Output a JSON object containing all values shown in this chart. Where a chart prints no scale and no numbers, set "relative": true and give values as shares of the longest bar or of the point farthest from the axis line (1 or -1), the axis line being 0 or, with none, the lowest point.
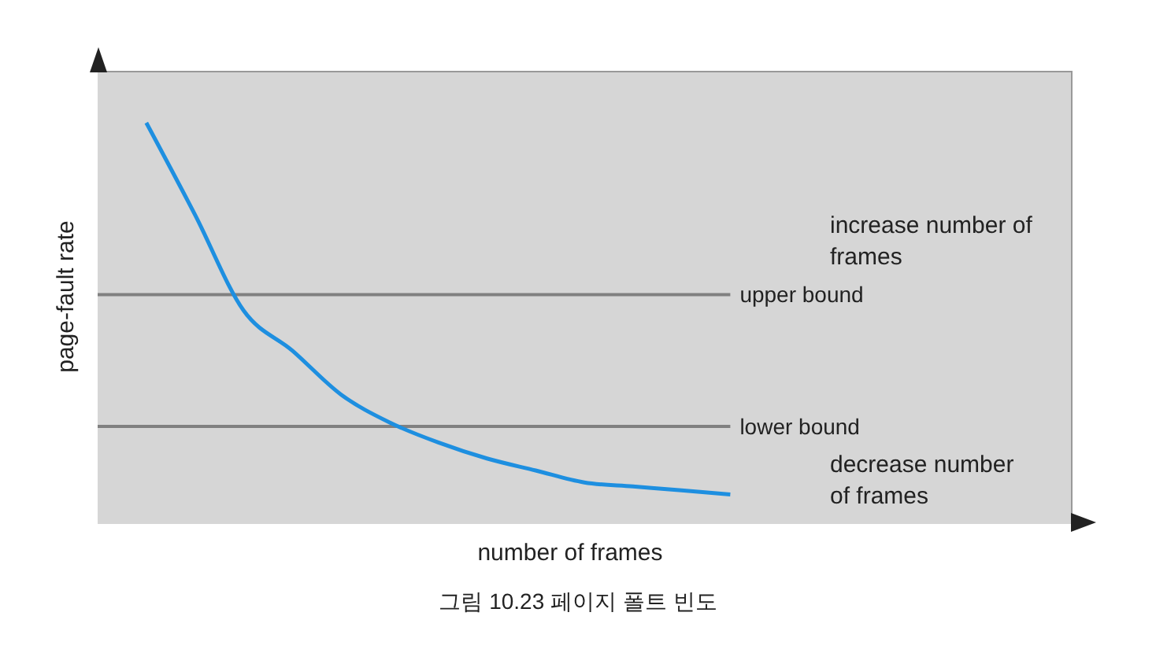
{
  "chart_data": {
    "type": "line",
    "relative": true,
    "xlabel": "number of frames",
    "ylabel": "page-fault rate",
    "categories": [
      null,
      null,
      null,
      null,
      null,
      null,
      null,
      null,
      null,
      null,
      null,
      null,
      null,
      null,
      null,
      null,
      null,
      null,
      null,
      null,
      null
    ],
    "series": [
      {
        "color": "#1e8fe0",
        "values": [
          null,
          1,
          0.77,
          0.53,
          0.43,
          0.32,
          0.25,
          0.2,
          0.16,
          0.13,
          0.1,
          0.09,
          0.08,
          0.07,
          null,
          null,
          null,
          null,
          null,
          null,
          null
        ]
      }
    ],
    "ref_lines": [
      {
        "axis": "y",
        "value": 0.57,
        "label": "upper bound",
        "color": "#808080"
      },
      {
        "axis": "y",
        "value": 0.24,
        "label": "lower bound",
        "color": "#808080"
      }
    ],
    "annotations": [
      "increase number of frames",
      "decrease number of frames",
      "그림 10.23 페이지 폴트 빈도"
    ],
    "marker": "none",
    "line_style": "solid",
    "grid": false
  }
}
